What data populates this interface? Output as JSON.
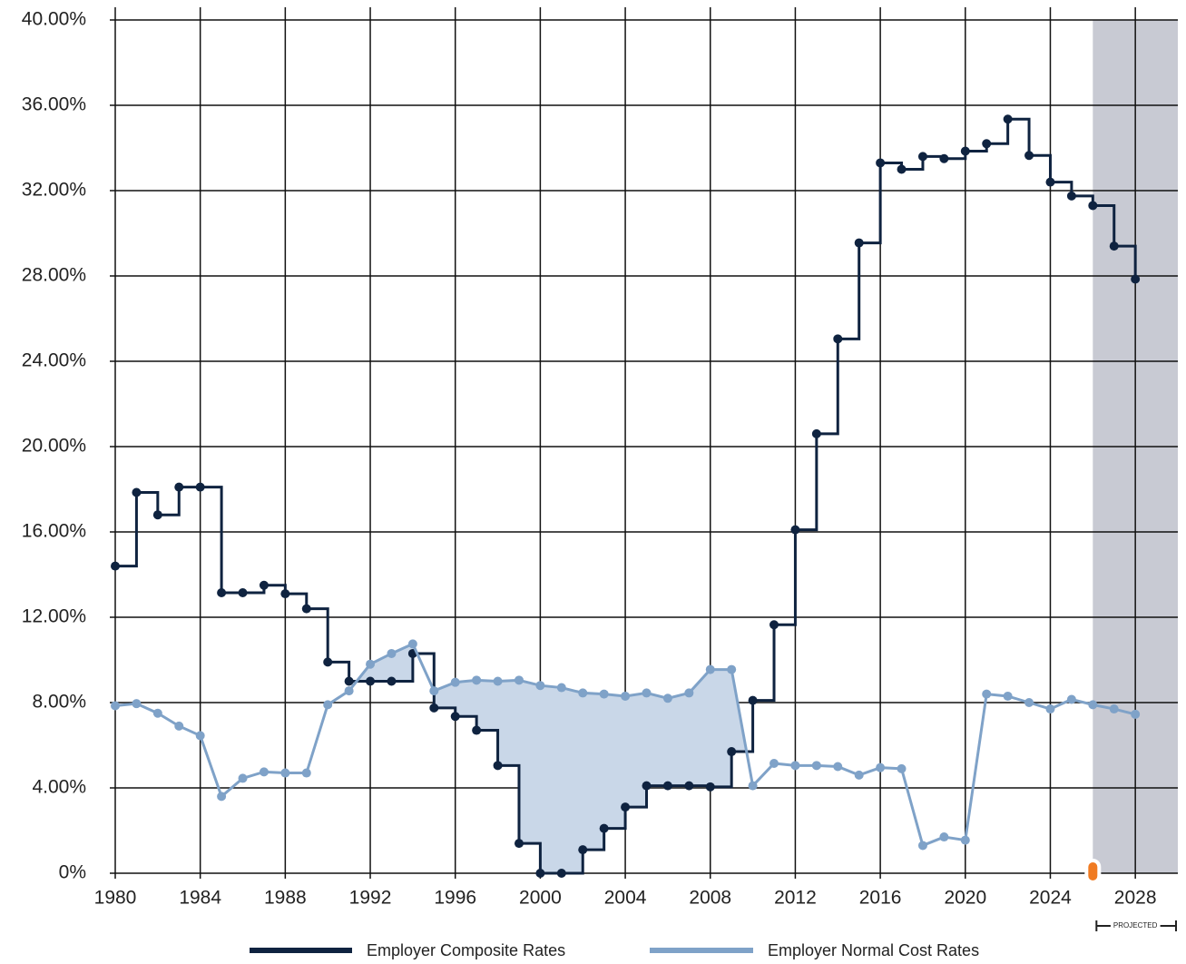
{
  "chart_data": {
    "type": "step-line",
    "x": [
      1980,
      1981,
      1982,
      1983,
      1984,
      1985,
      1986,
      1987,
      1988,
      1989,
      1990,
      1991,
      1992,
      1993,
      1994,
      1995,
      1996,
      1997,
      1998,
      1999,
      2000,
      2001,
      2002,
      2003,
      2004,
      2005,
      2006,
      2007,
      2008,
      2009,
      2010,
      2011,
      2012,
      2013,
      2014,
      2015,
      2016,
      2017,
      2018,
      2019,
      2020,
      2021,
      2022,
      2023,
      2024,
      2025,
      2026,
      2027,
      2028
    ],
    "series": [
      {
        "name": "Employer Composite Rates",
        "color": "#0f2340",
        "step": true,
        "values": [
          14.4,
          17.85,
          16.8,
          18.1,
          18.1,
          13.15,
          13.15,
          13.5,
          13.1,
          12.4,
          9.9,
          9.0,
          9.0,
          9.0,
          10.3,
          7.75,
          7.35,
          6.7,
          5.05,
          1.4,
          0,
          0,
          1.1,
          2.1,
          3.1,
          4.1,
          4.1,
          4.1,
          4.05,
          5.7,
          8.1,
          11.65,
          16.1,
          20.6,
          25.05,
          29.55,
          33.3,
          33.0,
          33.6,
          33.5,
          33.85,
          34.2,
          35.35,
          33.65,
          32.4,
          31.75,
          31.3,
          29.4,
          27.85
        ]
      },
      {
        "name": "Employer Normal Cost Rates",
        "color": "#7fa2c8",
        "step": false,
        "values": [
          7.85,
          7.95,
          7.5,
          6.9,
          6.45,
          3.6,
          4.45,
          4.75,
          4.7,
          4.7,
          7.9,
          8.55,
          9.8,
          10.3,
          10.75,
          8.55,
          8.95,
          9.05,
          9.0,
          9.05,
          8.8,
          8.7,
          8.45,
          8.4,
          8.3,
          8.45,
          8.2,
          8.45,
          9.55,
          9.55,
          4.1,
          5.15,
          5.05,
          5.05,
          5.0,
          4.6,
          4.95,
          4.9,
          1.3,
          1.7,
          1.55,
          8.4,
          8.3,
          8.0,
          7.7,
          8.15,
          7.9,
          7.7,
          7.45
        ]
      }
    ],
    "fill_color": "#c9d7e8",
    "xlim": [
      1980,
      2030
    ],
    "xticks": [
      1980,
      1984,
      1988,
      1992,
      1996,
      2000,
      2004,
      2008,
      2012,
      2016,
      2020,
      2024,
      2028
    ],
    "ylim": [
      0,
      40
    ],
    "yticks": [
      {
        "value": 0,
        "label": "0%"
      },
      {
        "value": 4,
        "label": "4.00%"
      },
      {
        "value": 8,
        "label": "8.00%"
      },
      {
        "value": 12,
        "label": "12.00%"
      },
      {
        "value": 16,
        "label": "16.00%"
      },
      {
        "value": 20,
        "label": "20.00%"
      },
      {
        "value": 24,
        "label": "24.00%"
      },
      {
        "value": 28,
        "label": "28.00%"
      },
      {
        "value": 32,
        "label": "32.00%"
      },
      {
        "value": 36,
        "label": "36.00%"
      },
      {
        "value": 40,
        "label": "40.00%"
      }
    ],
    "grid": true,
    "projected": {
      "label": "PROJECTED",
      "range": [
        2026,
        2030
      ],
      "color": "#c8cad3",
      "marker_color": "#f07b22"
    }
  }
}
